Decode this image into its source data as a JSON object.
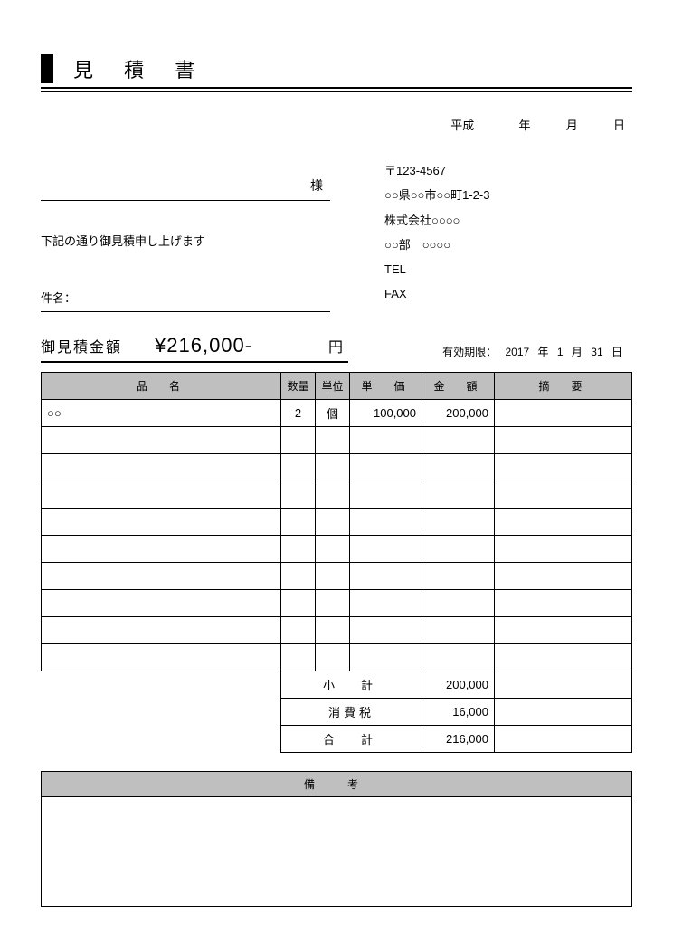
{
  "title": "見 積 書",
  "date": {
    "era": "平成",
    "year": "",
    "y_suf": "年",
    "month": "",
    "m_suf": "月",
    "day": "",
    "d_suf": "日"
  },
  "recipient_suffix": "様",
  "intro": "下記の通り御見積申し上げます",
  "subject_label": "件名：",
  "issuer": {
    "postal": "〒123-4567",
    "address": "○○県○○市○○町1-2-3",
    "company": "株式会社○○○○",
    "dept": "○○部　○○○○",
    "tel_label": "TEL",
    "fax_label": "FAX"
  },
  "total": {
    "label": "御見積金額",
    "amount": "¥216,000-",
    "currency": "円"
  },
  "validity": {
    "label": "有効期限：",
    "year": "2017",
    "y": "年",
    "month": "1",
    "m": "月",
    "day": "31",
    "d": "日"
  },
  "columns": {
    "name": "品　名",
    "qty": "数量",
    "unit": "単位",
    "price": "単　価",
    "amount": "金　額",
    "note": "摘　要"
  },
  "rows": [
    {
      "name": "○○",
      "qty": "2",
      "unit": "個",
      "price": "100,000",
      "amount": "200,000",
      "note": ""
    }
  ],
  "blank_rows": 9,
  "summary": {
    "subtotal_label": "小　計",
    "subtotal": "200,000",
    "tax_label": "消費税",
    "tax": "16,000",
    "total_label": "合　計",
    "total": "216,000"
  },
  "remarks_label": "備　考",
  "colors": {
    "header_bg": "#bfbfbf",
    "border": "#000000",
    "background": "#ffffff"
  }
}
